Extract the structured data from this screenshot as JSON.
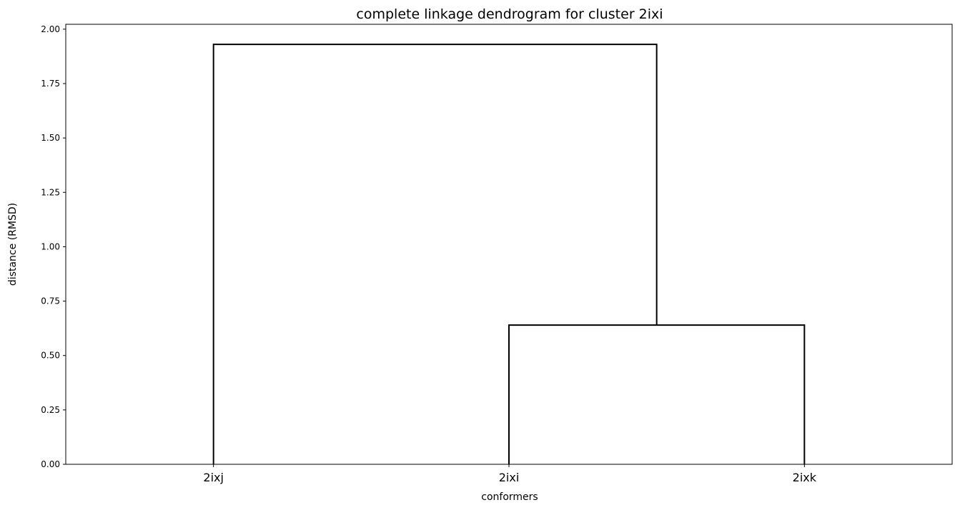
{
  "chart_data": {
    "type": "dendrogram",
    "title": "complete linkage dendrogram for cluster 2ixi",
    "xlabel": "conformers",
    "ylabel": "distance (RMSD)",
    "ylim": [
      0,
      2.0225
    ],
    "yticks": [
      0.0,
      0.25,
      0.5,
      0.75,
      1.0,
      1.25,
      1.5,
      1.75,
      2.0
    ],
    "ytick_labels": [
      "0.00",
      "0.25",
      "0.50",
      "0.75",
      "1.00",
      "1.25",
      "1.50",
      "1.75",
      "2.00"
    ],
    "leaves": [
      "2ixj",
      "2ixi",
      "2ixk"
    ],
    "merges": [
      {
        "left": "2ixi",
        "right": "2ixk",
        "height": 0.64
      },
      {
        "left": "2ixj",
        "right": "2ixi+2ixk",
        "height": 1.93
      }
    ],
    "grid": false,
    "line_color": "#000000"
  }
}
